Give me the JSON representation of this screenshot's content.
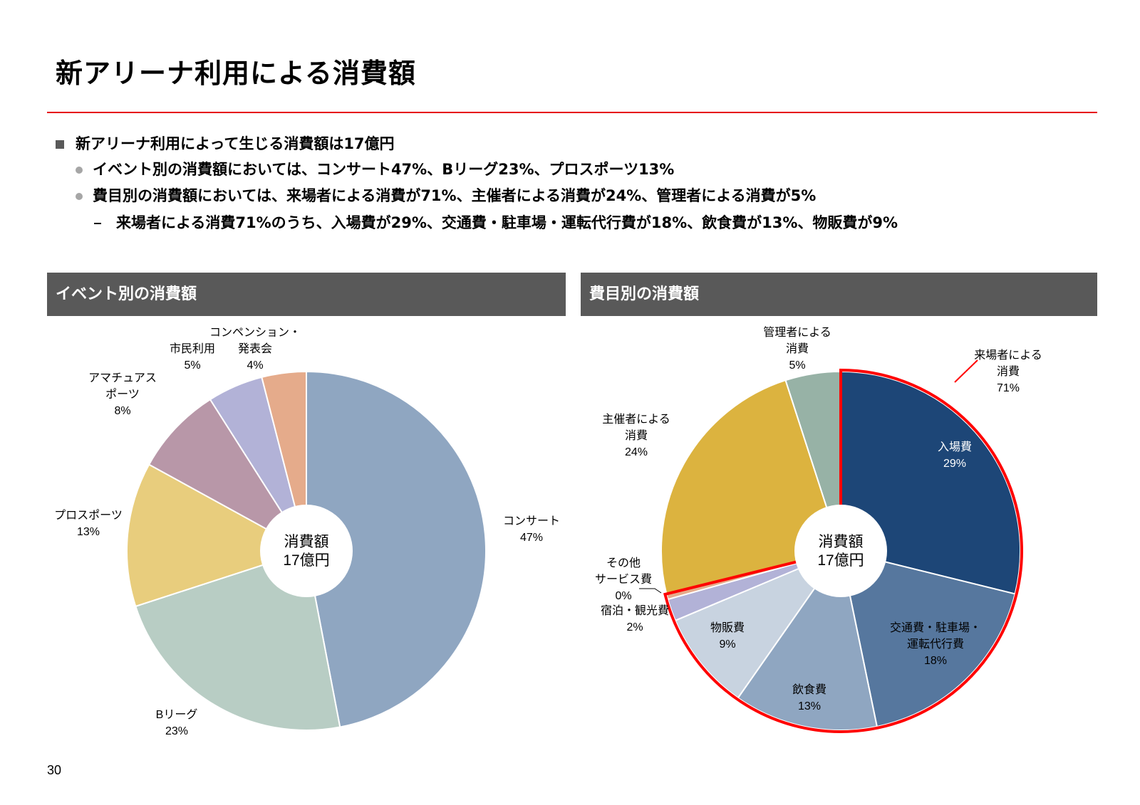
{
  "title": "新アリーナ利用による消費額",
  "bullets": [
    {
      "level": 1,
      "marker": "square",
      "text": "新アリーナ利用によって生じる消費額は17億円"
    },
    {
      "level": 2,
      "marker": "dot",
      "text": "イベント別の消費額においては、コンサート47%、Bリーグ23%、プロスポーツ13%"
    },
    {
      "level": 2,
      "marker": "dot",
      "text": "費目別の消費額においては、来場者による消費が71%、主催者による消費が24%、管理者による消費が5%"
    },
    {
      "level": 3,
      "marker": "dash",
      "text": "来場者による消費71%のうち、入場費が29%、交通費・駐車場・運転代行費が18%、飲食費が13%、物販費が9%"
    }
  ],
  "panels": {
    "left_title": "イベント別の消費額",
    "right_title": "費目別の消費額"
  },
  "chart_data": [
    {
      "type": "pie",
      "title": "イベント別の消費額",
      "center_label": [
        "消費額",
        "17億円"
      ],
      "categories": [
        "コンサート",
        "Bリーグ",
        "プロスポーツ",
        "アマチュアスポーツ",
        "市民利用",
        "コンペンション・発表会"
      ],
      "values": [
        47,
        23,
        13,
        8,
        5,
        4
      ],
      "value_labels": [
        "47%",
        "23%",
        "13%",
        "8%",
        "5%",
        "4%"
      ],
      "colors": [
        "#8fa6c1",
        "#b8cdc4",
        "#e8cd7d",
        "#b897a8",
        "#b2b2d7",
        "#e5ab8b"
      ]
    },
    {
      "type": "pie",
      "title": "費目別の消費額",
      "center_label": [
        "消費額",
        "17億円"
      ],
      "categories": [
        "入場費",
        "交通費・駐車場・運転代行費",
        "飲食費",
        "物販費",
        "宿泊・観光費",
        "その他サービス費",
        "主催者による消費",
        "管理者による消費"
      ],
      "values": [
        29,
        18,
        13,
        9,
        2,
        0.5,
        24,
        5
      ],
      "value_labels": [
        "29%",
        "18%",
        "13%",
        "9%",
        "2%",
        "0%",
        "24%",
        "5%"
      ],
      "colors": [
        "#1d4677",
        "#56779e",
        "#8fa6c1",
        "#c8d3e0",
        "#b2b2d7",
        "#e5ab8b",
        "#dcb33f",
        "#97b2a6"
      ],
      "group_highlight": {
        "label": "来場者による消費",
        "value_label": "71%",
        "color": "#ff0000"
      },
      "annotations": [
        {
          "text": [
            "管理者による",
            "消費",
            "5%"
          ]
        },
        {
          "text": [
            "主催者による",
            "消費",
            "24%"
          ]
        },
        {
          "text": [
            "来場者による",
            "消費",
            "71%"
          ]
        }
      ]
    }
  ],
  "page_number": "30"
}
